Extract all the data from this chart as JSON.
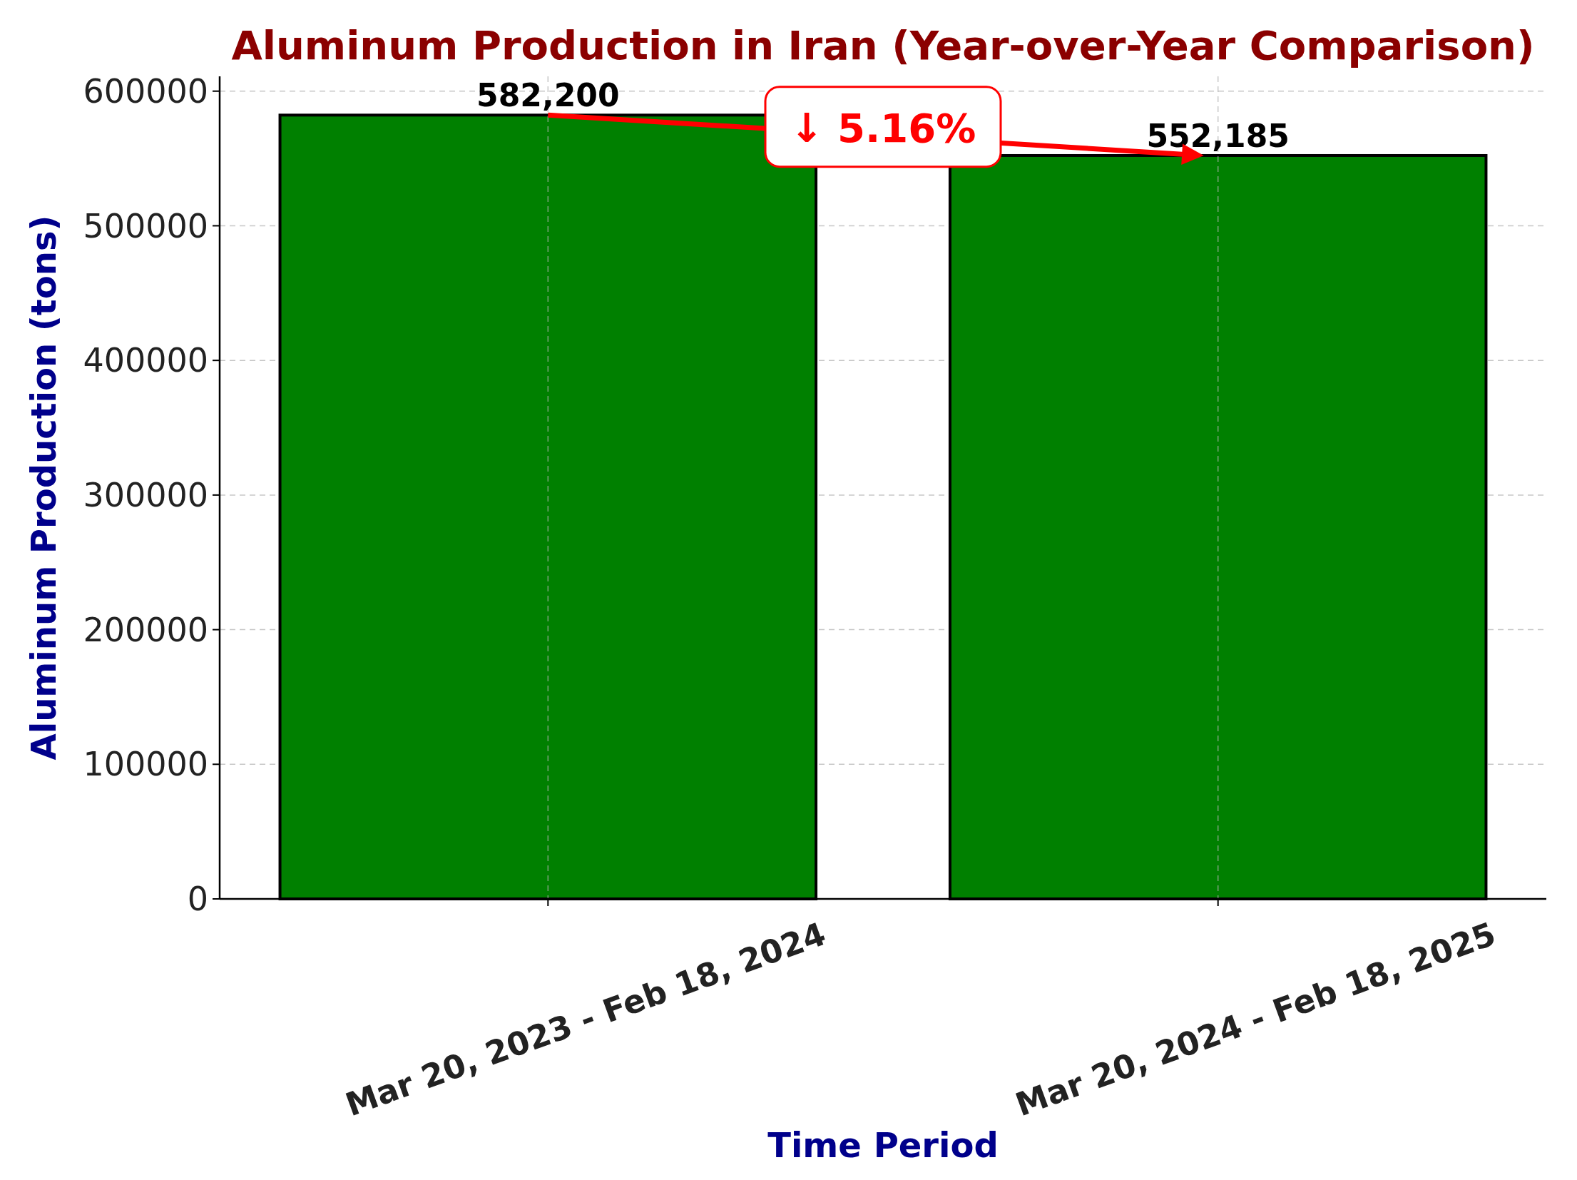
{
  "chart_data": {
    "type": "bar",
    "title": "Aluminum Production in Iran (Year-over-Year Comparison)",
    "xlabel": "Time Period",
    "ylabel": "Aluminum Production (tons)",
    "categories": [
      "Mar 20, 2023 - Feb 18, 2024",
      "Mar 20, 2024 - Feb 18, 2025"
    ],
    "values": [
      582200,
      552185
    ],
    "color": "#008000",
    "ylim": [
      0,
      611000
    ],
    "yticks": [
      0,
      100000,
      200000,
      300000,
      400000,
      500000,
      600000
    ],
    "grid": true,
    "value_labels": [
      "582,200",
      "552,185"
    ],
    "annotations": [
      "↓ 5.16%"
    ]
  }
}
